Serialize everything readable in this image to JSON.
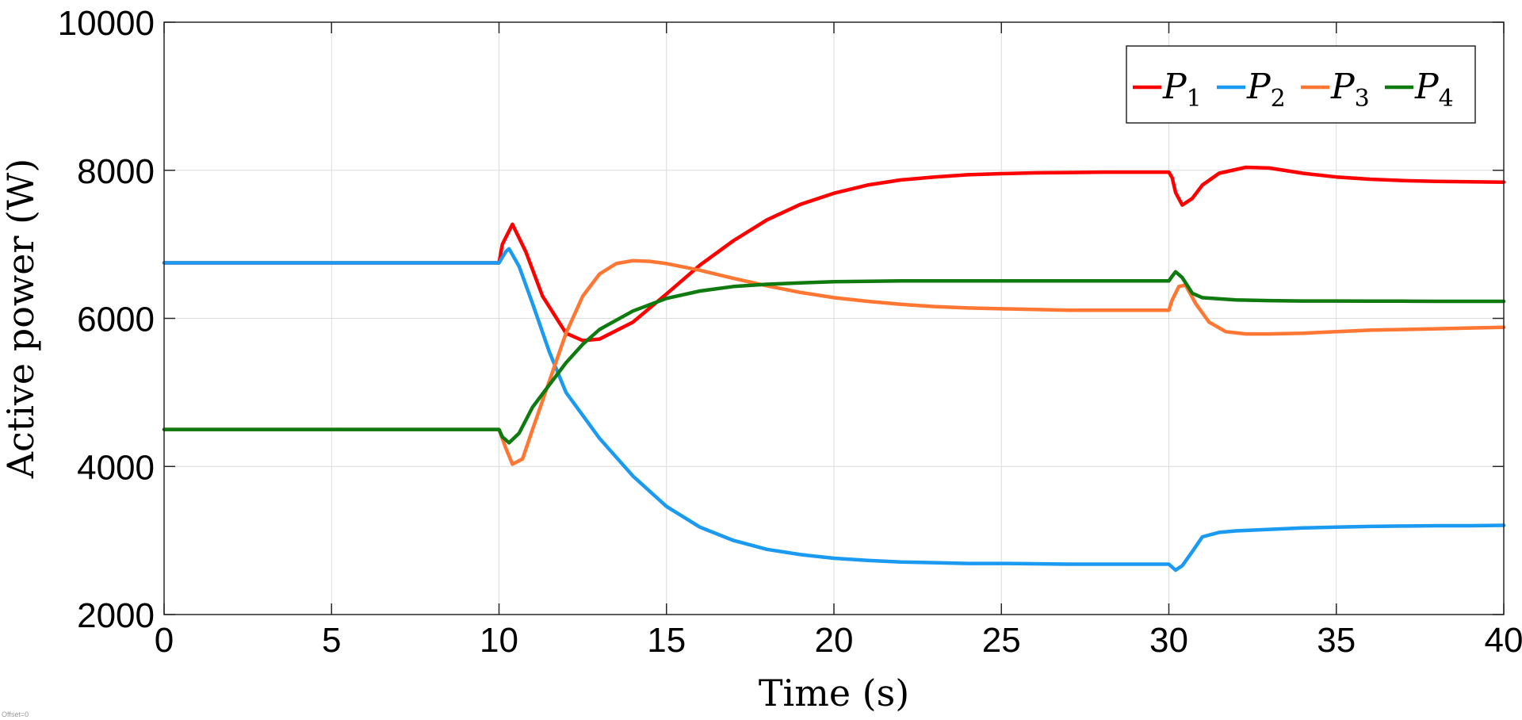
{
  "chart_data": {
    "type": "line",
    "title": "",
    "xlabel": "Time (s)",
    "ylabel": "Active power (W)",
    "xlim": [
      0,
      40
    ],
    "ylim": [
      2000,
      10000
    ],
    "xticks": [
      0,
      5,
      10,
      15,
      20,
      25,
      30,
      35,
      40
    ],
    "yticks": [
      2000,
      4000,
      6000,
      8000,
      10000
    ],
    "grid": true,
    "legend_position": "top-right",
    "legend_orientation": "horizontal",
    "series": [
      {
        "name": "P1",
        "name_main": "P",
        "name_sub": "1",
        "color": "#ff0000",
        "points": [
          [
            0,
            6750
          ],
          [
            10,
            6750
          ],
          [
            10.1,
            7000
          ],
          [
            10.4,
            7270
          ],
          [
            10.8,
            6900
          ],
          [
            11.3,
            6300
          ],
          [
            12,
            5800
          ],
          [
            12.5,
            5700
          ],
          [
            13,
            5720
          ],
          [
            14,
            5950
          ],
          [
            15,
            6330
          ],
          [
            16,
            6720
          ],
          [
            17,
            7050
          ],
          [
            18,
            7330
          ],
          [
            19,
            7540
          ],
          [
            20,
            7690
          ],
          [
            21,
            7800
          ],
          [
            22,
            7870
          ],
          [
            23,
            7910
          ],
          [
            24,
            7940
          ],
          [
            25,
            7955
          ],
          [
            26,
            7965
          ],
          [
            27,
            7970
          ],
          [
            28,
            7975
          ],
          [
            29,
            7975
          ],
          [
            30,
            7975
          ],
          [
            30.1,
            7900
          ],
          [
            30.2,
            7700
          ],
          [
            30.4,
            7530
          ],
          [
            30.7,
            7620
          ],
          [
            31,
            7800
          ],
          [
            31.5,
            7960
          ],
          [
            32.3,
            8040
          ],
          [
            33,
            8030
          ],
          [
            34,
            7960
          ],
          [
            35,
            7910
          ],
          [
            36,
            7880
          ],
          [
            37,
            7860
          ],
          [
            38,
            7850
          ],
          [
            39,
            7845
          ],
          [
            40,
            7840
          ]
        ]
      },
      {
        "name": "P2",
        "name_main": "P",
        "name_sub": "2",
        "color": "#1a9af0",
        "points": [
          [
            0,
            6750
          ],
          [
            10,
            6750
          ],
          [
            10.2,
            6900
          ],
          [
            10.3,
            6940
          ],
          [
            10.6,
            6700
          ],
          [
            11,
            6200
          ],
          [
            11.5,
            5550
          ],
          [
            12,
            5000
          ],
          [
            13,
            4380
          ],
          [
            14,
            3870
          ],
          [
            15,
            3460
          ],
          [
            16,
            3180
          ],
          [
            17,
            3000
          ],
          [
            18,
            2880
          ],
          [
            19,
            2810
          ],
          [
            20,
            2760
          ],
          [
            21,
            2730
          ],
          [
            22,
            2710
          ],
          [
            23,
            2700
          ],
          [
            24,
            2690
          ],
          [
            25,
            2690
          ],
          [
            26,
            2685
          ],
          [
            27,
            2680
          ],
          [
            28,
            2680
          ],
          [
            29,
            2680
          ],
          [
            30,
            2680
          ],
          [
            30.2,
            2600
          ],
          [
            30.4,
            2660
          ],
          [
            30.7,
            2850
          ],
          [
            31,
            3050
          ],
          [
            31.5,
            3110
          ],
          [
            32,
            3130
          ],
          [
            33,
            3150
          ],
          [
            34,
            3170
          ],
          [
            35,
            3180
          ],
          [
            36,
            3190
          ],
          [
            37,
            3195
          ],
          [
            38,
            3200
          ],
          [
            39,
            3200
          ],
          [
            40,
            3205
          ]
        ]
      },
      {
        "name": "P3",
        "name_main": "P",
        "name_sub": "3",
        "color": "#ff7733",
        "points": [
          [
            0,
            4500
          ],
          [
            10,
            4500
          ],
          [
            10.2,
            4250
          ],
          [
            10.4,
            4030
          ],
          [
            10.7,
            4100
          ],
          [
            11,
            4500
          ],
          [
            11.5,
            5150
          ],
          [
            12,
            5800
          ],
          [
            12.5,
            6300
          ],
          [
            13,
            6600
          ],
          [
            13.5,
            6740
          ],
          [
            14,
            6780
          ],
          [
            14.5,
            6770
          ],
          [
            15,
            6740
          ],
          [
            16,
            6650
          ],
          [
            17,
            6540
          ],
          [
            18,
            6440
          ],
          [
            19,
            6350
          ],
          [
            20,
            6280
          ],
          [
            21,
            6230
          ],
          [
            22,
            6190
          ],
          [
            23,
            6160
          ],
          [
            24,
            6140
          ],
          [
            25,
            6130
          ],
          [
            26,
            6120
          ],
          [
            27,
            6110
          ],
          [
            28,
            6110
          ],
          [
            29,
            6110
          ],
          [
            30,
            6110
          ],
          [
            30.1,
            6250
          ],
          [
            30.3,
            6430
          ],
          [
            30.5,
            6450
          ],
          [
            30.8,
            6200
          ],
          [
            31.2,
            5950
          ],
          [
            31.7,
            5820
          ],
          [
            32.3,
            5790
          ],
          [
            33,
            5790
          ],
          [
            34,
            5800
          ],
          [
            35,
            5820
          ],
          [
            36,
            5840
          ],
          [
            37,
            5850
          ],
          [
            38,
            5860
          ],
          [
            39,
            5870
          ],
          [
            40,
            5880
          ]
        ]
      },
      {
        "name": "P4",
        "name_main": "P",
        "name_sub": "4",
        "color": "#0f7a0f",
        "points": [
          [
            0,
            4500
          ],
          [
            10,
            4500
          ],
          [
            10.1,
            4400
          ],
          [
            10.3,
            4320
          ],
          [
            10.6,
            4450
          ],
          [
            11,
            4800
          ],
          [
            11.5,
            5100
          ],
          [
            12,
            5400
          ],
          [
            12.5,
            5650
          ],
          [
            13,
            5850
          ],
          [
            14,
            6100
          ],
          [
            15,
            6270
          ],
          [
            16,
            6370
          ],
          [
            17,
            6430
          ],
          [
            18,
            6460
          ],
          [
            19,
            6480
          ],
          [
            20,
            6495
          ],
          [
            21,
            6500
          ],
          [
            22,
            6505
          ],
          [
            23,
            6505
          ],
          [
            24,
            6505
          ],
          [
            25,
            6505
          ],
          [
            26,
            6505
          ],
          [
            27,
            6505
          ],
          [
            28,
            6505
          ],
          [
            29,
            6505
          ],
          [
            30,
            6505
          ],
          [
            30.1,
            6570
          ],
          [
            30.2,
            6630
          ],
          [
            30.4,
            6550
          ],
          [
            30.7,
            6340
          ],
          [
            31,
            6280
          ],
          [
            32,
            6250
          ],
          [
            33,
            6240
          ],
          [
            34,
            6235
          ],
          [
            35,
            6235
          ],
          [
            36,
            6232
          ],
          [
            37,
            6232
          ],
          [
            38,
            6230
          ],
          [
            39,
            6230
          ],
          [
            40,
            6230
          ]
        ]
      }
    ]
  },
  "footer": {
    "note": "Offset=0"
  }
}
